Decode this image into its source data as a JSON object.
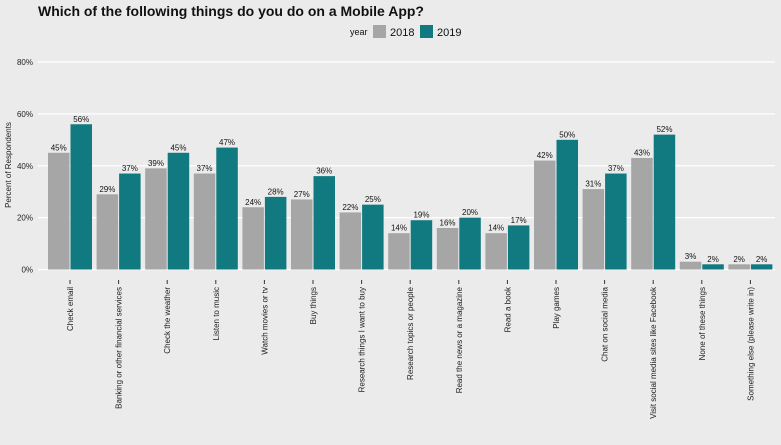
{
  "chart_data": {
    "type": "bar",
    "title": "Which of the following things do you do on a Mobile App?",
    "legend_title": "year",
    "legend_position": "top",
    "ylabel": "Percent of Respondents",
    "xlabel": "",
    "ylim": [
      0,
      80
    ],
    "yticks": [
      "0%",
      "20%",
      "40%",
      "60%",
      "80%"
    ],
    "ytick_values": [
      0,
      20,
      40,
      60,
      80
    ],
    "grid": true,
    "categories": [
      "Check email",
      "Banking or other financial services",
      "Check the weather",
      "Listen to music",
      "Watch movies or tv",
      "Buy things",
      "Research things I want to buy",
      "Research topics or people",
      "Read the news or a magazine",
      "Read a book",
      "Play games",
      "Chat on social media",
      "Visit social media sites like Facebook",
      "None of these things",
      "Something else (please write in)"
    ],
    "series": [
      {
        "name": "2018",
        "color": "#a6a6a6",
        "values": [
          45,
          29,
          39,
          37,
          24,
          27,
          22,
          14,
          16,
          14,
          42,
          31,
          43,
          3,
          2
        ],
        "labels": [
          "45%",
          "29%",
          "39%",
          "37%",
          "24%",
          "27%",
          "22%",
          "14%",
          "16%",
          "14%",
          "42%",
          "31%",
          "43%",
          "3%",
          "2%"
        ]
      },
      {
        "name": "2019",
        "color": "#117a80",
        "values": [
          56,
          37,
          45,
          47,
          28,
          36,
          25,
          19,
          20,
          17,
          50,
          37,
          52,
          2,
          2
        ],
        "labels": [
          "56%",
          "37%",
          "45%",
          "47%",
          "28%",
          "36%",
          "25%",
          "19%",
          "20%",
          "17%",
          "50%",
          "37%",
          "52%",
          "2%",
          "2%"
        ]
      }
    ]
  }
}
